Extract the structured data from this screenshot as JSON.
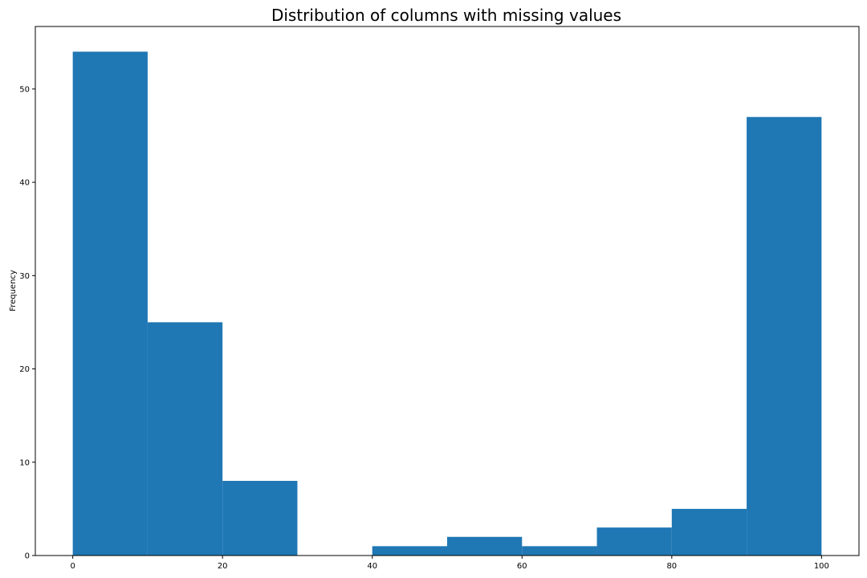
{
  "chart_data": {
    "type": "bar",
    "title": "Distribution of columns with missing values",
    "xlabel": "",
    "ylabel": "Frequency",
    "bins": [
      {
        "start": 0,
        "end": 10,
        "count": 54
      },
      {
        "start": 10,
        "end": 20,
        "count": 25
      },
      {
        "start": 20,
        "end": 30,
        "count": 8
      },
      {
        "start": 30,
        "end": 40,
        "count": 0
      },
      {
        "start": 40,
        "end": 50,
        "count": 1
      },
      {
        "start": 50,
        "end": 60,
        "count": 2
      },
      {
        "start": 60,
        "end": 70,
        "count": 1
      },
      {
        "start": 70,
        "end": 80,
        "count": 3
      },
      {
        "start": 80,
        "end": 90,
        "count": 5
      },
      {
        "start": 90,
        "end": 100,
        "count": 47
      }
    ],
    "xlim": [
      -5,
      105
    ],
    "ylim": [
      0,
      56.7
    ],
    "xticks": [
      "0",
      "20",
      "40",
      "60",
      "80",
      "100"
    ],
    "yticks": [
      "0",
      "10",
      "20",
      "30",
      "40",
      "50"
    ],
    "grid": false,
    "bar_color": "#1f77b4"
  }
}
